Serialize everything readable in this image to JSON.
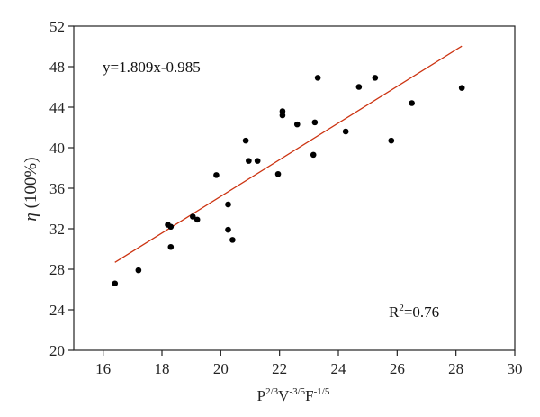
{
  "chart_data": {
    "type": "scatter",
    "title": "",
    "xlabel": {
      "base": "P",
      "sup1": "2/3",
      "mid1": "V",
      "sup2": "-3/5",
      "mid2": "F",
      "sup3": "-1/5"
    },
    "ylabel": {
      "symbol": "η",
      "unit": " (100%)"
    },
    "xlim": [
      15,
      30
    ],
    "ylim": [
      20,
      52
    ],
    "xticks": [
      16,
      18,
      20,
      22,
      24,
      26,
      28,
      30
    ],
    "yticks": [
      20,
      24,
      28,
      32,
      36,
      40,
      44,
      48,
      52
    ],
    "grid": false,
    "series": [
      {
        "points": [
          [
            16.4,
            26.6
          ],
          [
            17.2,
            27.9
          ],
          [
            18.2,
            32.4
          ],
          [
            18.3,
            32.2
          ],
          [
            18.3,
            30.2
          ],
          [
            19.05,
            33.2
          ],
          [
            19.2,
            32.9
          ],
          [
            19.85,
            37.3
          ],
          [
            20.25,
            34.4
          ],
          [
            20.25,
            31.9
          ],
          [
            20.4,
            30.9
          ],
          [
            20.85,
            40.7
          ],
          [
            20.95,
            38.7
          ],
          [
            21.25,
            38.7
          ],
          [
            21.95,
            37.4
          ],
          [
            22.1,
            43.6
          ],
          [
            22.1,
            43.2
          ],
          [
            22.6,
            42.3
          ],
          [
            23.15,
            39.3
          ],
          [
            23.2,
            42.5
          ],
          [
            23.3,
            46.9
          ],
          [
            24.25,
            41.6
          ],
          [
            24.7,
            46.0
          ],
          [
            25.25,
            46.9
          ],
          [
            25.8,
            40.7
          ],
          [
            26.5,
            44.4
          ],
          [
            28.2,
            45.9
          ]
        ]
      }
    ],
    "fit": {
      "slope": 1.809,
      "intercept": -0.985,
      "x_range": [
        16.4,
        28.2
      ],
      "color": "#cc3311"
    },
    "equation_label": "y=1.809x-0.985",
    "r2_label": {
      "base": "R",
      "sup": "2",
      "rest": "=0.76"
    }
  }
}
